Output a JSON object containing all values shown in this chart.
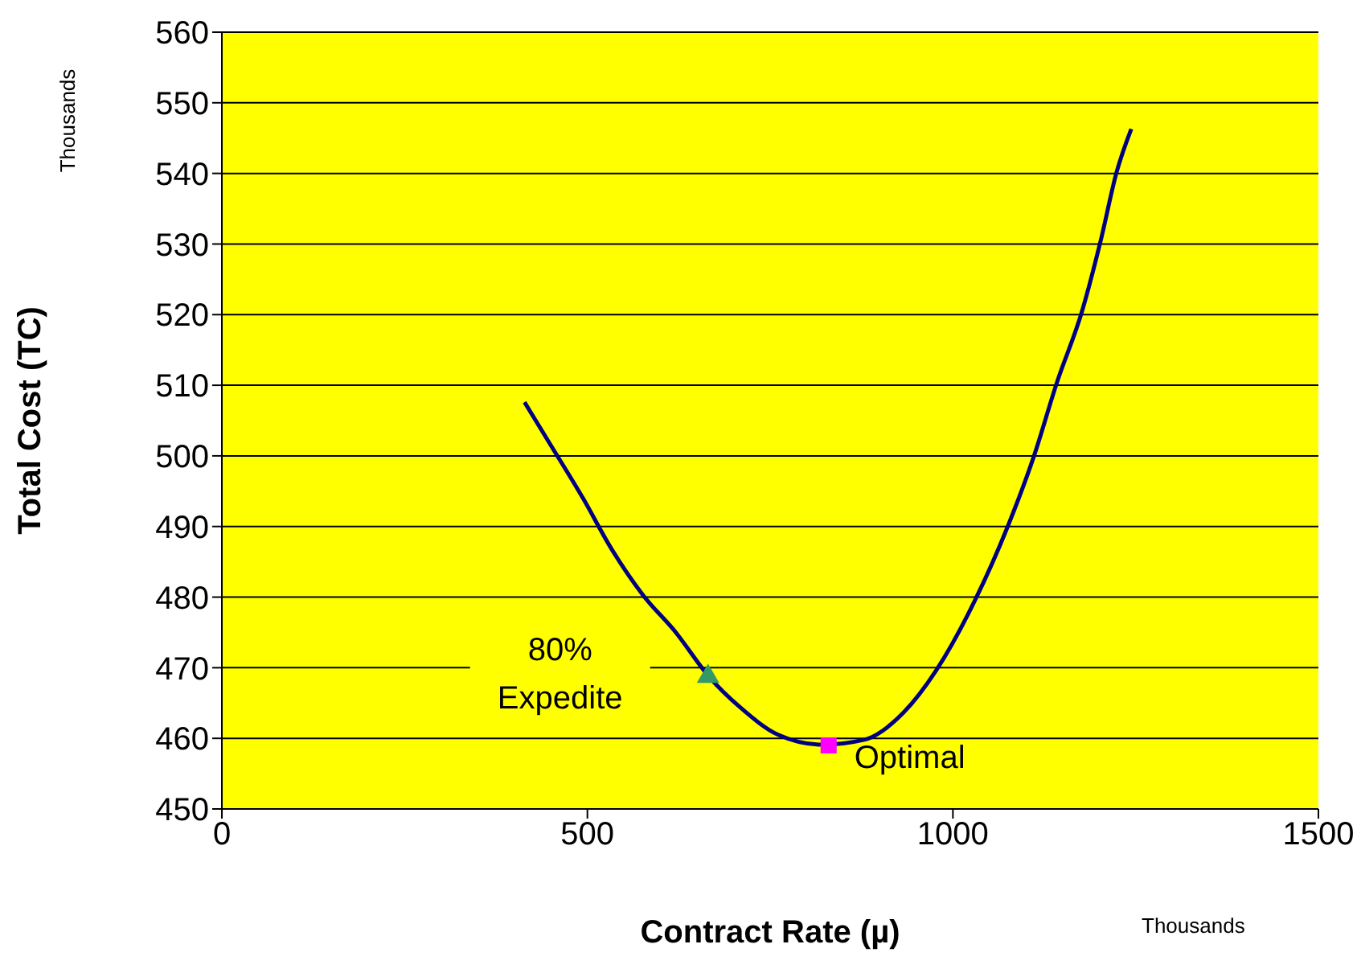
{
  "chart_data": {
    "type": "line",
    "xlabel": "Contract Rate (µ)",
    "ylabel": "Total Cost (TC)",
    "xlim": [
      0,
      1500
    ],
    "xticks": [
      0,
      500,
      1000,
      1500
    ],
    "ylim": [
      450,
      560
    ],
    "yticks": [
      450,
      460,
      470,
      480,
      490,
      500,
      510,
      520,
      530,
      540,
      550,
      560
    ],
    "grid": "y",
    "series": [
      {
        "color": "#000080",
        "marker": "none",
        "x": [
          414,
          450,
          494,
          532,
          576,
          621,
          665,
          710,
          761,
          821,
          879,
          932,
          977,
          1030,
          1075,
          1111,
          1142,
          1177,
          1202,
          1224,
          1244
        ],
        "values": [
          507.6,
          501.5,
          494,
          487,
          480.3,
          475,
          468.9,
          464.3,
          460.5,
          459.1,
          459.8,
          463.6,
          469.6,
          479.5,
          490,
          500,
          510.3,
          520.6,
          530.4,
          540.2,
          546.3
        ]
      },
      {
        "type": "scatter",
        "color": "#339966",
        "marker": "triangle",
        "x": [
          665
        ],
        "values": [
          469
        ]
      },
      {
        "type": "scatter",
        "color": "#ff00ff",
        "marker": "square",
        "x": [
          830
        ],
        "values": [
          459
        ]
      }
    ],
    "annotations": [
      {
        "text": "80%\nExpedite",
        "x": 665,
        "y": 469
      },
      {
        "text": "Optimal",
        "x": 830,
        "y": 459
      },
      "Thousands",
      "Thousands"
    ]
  }
}
